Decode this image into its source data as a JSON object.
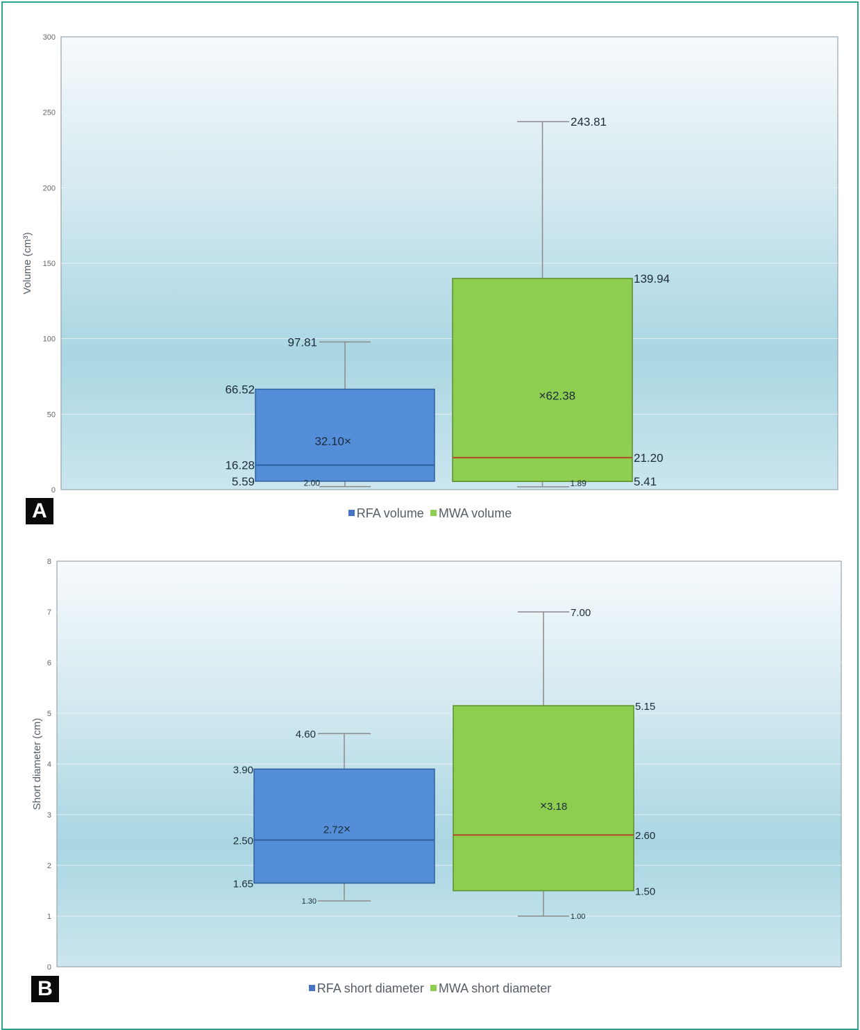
{
  "colors": {
    "rfa": "#558ed8",
    "rfa_edge": "#2e5f9e",
    "mwa": "#8dcd4f",
    "mwa_edge": "#5d8e2c",
    "median_rfa": "#2e5f9e",
    "median_mwa": "#b04a2a",
    "whisker": "#8a8a8a",
    "label": "#1c2b3a",
    "tick": "#666666",
    "frame": "#2aa58f"
  },
  "chart_data": [
    {
      "panel": "A",
      "type": "boxplot",
      "ylabel": "Volume (cm³)",
      "ylim": [
        0,
        300
      ],
      "yticks": [
        0,
        50,
        100,
        150,
        200,
        250,
        300
      ],
      "grid": true,
      "legend_position": "bottom",
      "series": [
        {
          "name": "RFA volume",
          "min": 2.0,
          "q1": 5.59,
          "median": 16.28,
          "mean": 32.1,
          "q3": 66.52,
          "max": 97.81,
          "labels": {
            "min": "2.00",
            "q1": "5.59",
            "median": "16.28",
            "mean": "32.10",
            "q3": "66.52",
            "max": "97.81"
          }
        },
        {
          "name": "MWA volume",
          "min": 1.89,
          "q1": 5.41,
          "median": 21.2,
          "mean": 62.38,
          "q3": 139.94,
          "max": 243.81,
          "labels": {
            "min": "1.89",
            "q1": "5.41",
            "median": "21.20",
            "mean": "62.38",
            "q3": "139.94",
            "max": "243.81"
          }
        }
      ]
    },
    {
      "panel": "B",
      "type": "boxplot",
      "ylabel": "Short diameter (cm)",
      "ylim": [
        0,
        8
      ],
      "yticks": [
        0,
        1,
        2,
        3,
        4,
        5,
        6,
        7,
        8
      ],
      "grid": true,
      "legend_position": "bottom",
      "series": [
        {
          "name": "RFA short diameter",
          "min": 1.3,
          "q1": 1.65,
          "median": 2.5,
          "mean": 2.72,
          "q3": 3.9,
          "max": 4.6,
          "labels": {
            "min": "1.30",
            "q1": "1.65",
            "median": "2.50",
            "mean": "2.72",
            "q3": "3.90",
            "max": "4.60"
          }
        },
        {
          "name": "MWA short diameter",
          "min": 1.0,
          "q1": 1.5,
          "median": 2.6,
          "mean": 3.18,
          "q3": 5.15,
          "max": 7.0,
          "labels": {
            "min": "1.00",
            "q1": "1.50",
            "median": "2.60",
            "mean": "3.18",
            "q3": "5.15",
            "max": "7.00"
          }
        }
      ]
    }
  ]
}
